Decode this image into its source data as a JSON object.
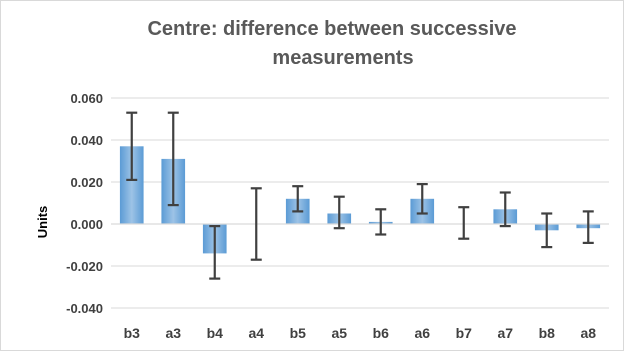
{
  "chart_data": {
    "type": "bar",
    "title_line1": "Centre: difference between successive",
    "title_line2": "measurements",
    "xlabel": "",
    "ylabel": "Units",
    "ylim": [
      -0.04,
      0.06
    ],
    "yticks": [
      0.06,
      0.04,
      0.02,
      0.0,
      -0.02,
      -0.04
    ],
    "ytick_labels": [
      "0.060",
      "0.040",
      "0.020",
      "0.000",
      "-0.020",
      "-0.040"
    ],
    "grid": true,
    "categories": [
      "b3",
      "a3",
      "b4",
      "a4",
      "b5",
      "a5",
      "b6",
      "a6",
      "b7",
      "a7",
      "b8",
      "a8"
    ],
    "values": [
      0.037,
      0.031,
      -0.014,
      0.0,
      0.012,
      0.005,
      0.001,
      0.012,
      0.0,
      0.007,
      -0.003,
      -0.002
    ],
    "error_low": [
      0.021,
      0.009,
      -0.026,
      -0.017,
      0.006,
      -0.002,
      -0.005,
      0.005,
      -0.007,
      -0.001,
      -0.011,
      -0.009
    ],
    "error_high": [
      0.053,
      0.053,
      -0.001,
      0.017,
      0.018,
      0.013,
      0.007,
      0.019,
      0.008,
      0.015,
      0.005,
      0.006
    ],
    "bar_color": "#5b9bd5",
    "bar_color_light": "#9dc3e6",
    "error_color": "#404040",
    "grid_color": "#d9d9d9"
  }
}
